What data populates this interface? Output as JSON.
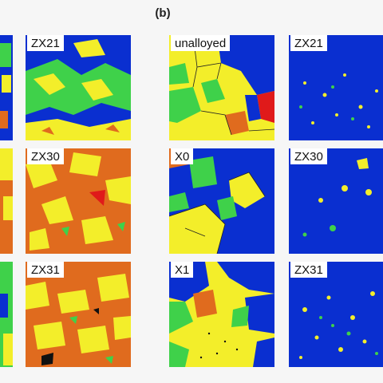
{
  "panel_label": "(b)",
  "tiles": {
    "a_zx21": "ZX21",
    "a_zx30": "ZX30",
    "a_zx31": "ZX31",
    "b_unalloyed": "unalloyed",
    "b_zx21": "ZX21",
    "b_x0": "X0",
    "b_zx30": "ZX30",
    "b_x1": "X1",
    "b_zx31": "ZX31"
  },
  "colors": {
    "blue": "#0a2fd0",
    "yellow": "#f3ee2a",
    "green": "#3fd14a",
    "orange": "#e06b1e",
    "red": "#e01a1a",
    "black": "#111111"
  }
}
